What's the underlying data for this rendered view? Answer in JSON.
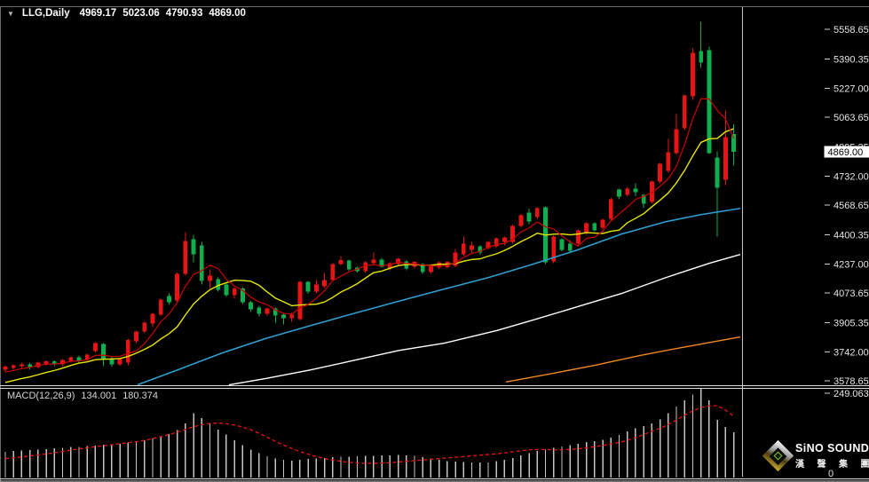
{
  "window": {
    "symbol_period": "LLG,Daily",
    "open": "4969.17",
    "high": "5023.06",
    "low": "4790.93",
    "close": "4869.00"
  },
  "colors": {
    "background": "#000000",
    "bull_candle": "#e81414",
    "bear_candle": "#0fae4e",
    "ma_fast_red": "#cc0000",
    "ma_yellow": "#e6e600",
    "ma_blue": "#2f9fd0",
    "ma_white": "#ffffff",
    "ma_orange": "#ef8820",
    "axis_text": "#e4e4e4",
    "tick": "#cfcfcf",
    "separator": "#dedede",
    "frame": "#6a6a6a",
    "histogram": "#c4c4c4",
    "signal_line": "#ee1111",
    "price_marker_bg": "#ffffff",
    "price_marker_text": "#000000"
  },
  "price_axis": {
    "labels": [
      {
        "text": "5558.65",
        "value": 5558.65
      },
      {
        "text": "5390.35",
        "value": 5390.35
      },
      {
        "text": "5227.00",
        "value": 5227.0
      },
      {
        "text": "5063.65",
        "value": 5063.65
      },
      {
        "text": "4895.35",
        "value": 4895.35
      },
      {
        "text": "4732.00",
        "value": 4732.0
      },
      {
        "text": "4568.65",
        "value": 4568.65
      },
      {
        "text": "4400.35",
        "value": 4400.35
      },
      {
        "text": "4237.00",
        "value": 4237.0
      },
      {
        "text": "4073.65",
        "value": 4073.65
      },
      {
        "text": "3905.35",
        "value": 3905.35
      },
      {
        "text": "3742.00",
        "value": 3742.0
      },
      {
        "text": "3578.65",
        "value": 3578.65
      }
    ],
    "current_price_label": "4869.00",
    "current_price": 4869.0
  },
  "macd_panel": {
    "indicator_label": "MACD(12,26,9)",
    "macd_value": "134.001",
    "signal_value": "180.374",
    "axis_top_label": "249.063",
    "axis_bottom_label": "0"
  },
  "logo": {
    "brand": "SiNO SOUND",
    "chinese": "漢 聲 集 團"
  },
  "chart_data": {
    "type": "candlestick",
    "title": "LLG,Daily",
    "legend_position": "none",
    "grid": false,
    "price_axis_range": [
      3543,
      5673
    ],
    "candles": [
      [
        3640,
        3667,
        3628,
        3658
      ],
      [
        3650,
        3672,
        3641,
        3665
      ],
      [
        3660,
        3680,
        3652,
        3672
      ],
      [
        3672,
        3678,
        3640,
        3655
      ],
      [
        3655,
        3686,
        3648,
        3680
      ],
      [
        3672,
        3694,
        3664,
        3688
      ],
      [
        3688,
        3694,
        3660,
        3670
      ],
      [
        3670,
        3700,
        3662,
        3695
      ],
      [
        3690,
        3716,
        3682,
        3710
      ],
      [
        3712,
        3720,
        3682,
        3690
      ],
      [
        3695,
        3730,
        3688,
        3725
      ],
      [
        3745,
        3795,
        3738,
        3790
      ],
      [
        3785,
        3790,
        3660,
        3700
      ],
      [
        3700,
        3712,
        3658,
        3670
      ],
      [
        3672,
        3706,
        3664,
        3700
      ],
      [
        3680,
        3815,
        3665,
        3808
      ],
      [
        3800,
        3862,
        3792,
        3855
      ],
      [
        3855,
        3912,
        3848,
        3905
      ],
      [
        3900,
        3962,
        3880,
        3955
      ],
      [
        3950,
        4042,
        3944,
        4035
      ],
      [
        4055,
        4070,
        4008,
        4020
      ],
      [
        4030,
        4188,
        4022,
        4180
      ],
      [
        4180,
        4415,
        4170,
        4365
      ],
      [
        4375,
        4400,
        4245,
        4290
      ],
      [
        4340,
        4360,
        4120,
        4140
      ],
      [
        4140,
        4205,
        4102,
        4172
      ],
      [
        4150,
        4160,
        4080,
        4090
      ],
      [
        4120,
        4128,
        4050,
        4060
      ],
      [
        4060,
        4105,
        4040,
        4098
      ],
      [
        4098,
        4105,
        4010,
        4020
      ],
      [
        4020,
        4028,
        3968,
        3980
      ],
      [
        3990,
        4000,
        3940,
        3955
      ],
      [
        3955,
        3992,
        3944,
        3985
      ],
      [
        3985,
        3992,
        3905,
        3945
      ],
      [
        3950,
        3958,
        3895,
        3930
      ],
      [
        3930,
        3960,
        3912,
        3952
      ],
      [
        3925,
        4142,
        3918,
        4135
      ],
      [
        4135,
        4142,
        4068,
        4080
      ],
      [
        4080,
        4145,
        4072,
        4120
      ],
      [
        4110,
        4185,
        4100,
        4145
      ],
      [
        4145,
        4242,
        4138,
        4235
      ],
      [
        4235,
        4280,
        4228,
        4258
      ],
      [
        4255,
        4262,
        4198,
        4205
      ],
      [
        4215,
        4222,
        4188,
        4195
      ],
      [
        4195,
        4252,
        4188,
        4245
      ],
      [
        4240,
        4300,
        4232,
        4262
      ],
      [
        4262,
        4270,
        4215,
        4222
      ],
      [
        4210,
        4245,
        4202,
        4240
      ],
      [
        4235,
        4272,
        4228,
        4265
      ],
      [
        4250,
        4258,
        4202,
        4210
      ],
      [
        4220,
        4254,
        4212,
        4248
      ],
      [
        4235,
        4242,
        4182,
        4190
      ],
      [
        4190,
        4230,
        4182,
        4224
      ],
      [
        4215,
        4250,
        4208,
        4245
      ],
      [
        4218,
        4254,
        4210,
        4248
      ],
      [
        4225,
        4322,
        4218,
        4300
      ],
      [
        4290,
        4390,
        4282,
        4350
      ],
      [
        4315,
        4362,
        4295,
        4340
      ],
      [
        4335,
        4342,
        4288,
        4300
      ],
      [
        4325,
        4366,
        4318,
        4360
      ],
      [
        4335,
        4386,
        4328,
        4380
      ],
      [
        4360,
        4392,
        4340,
        4385
      ],
      [
        4360,
        4458,
        4352,
        4450
      ],
      [
        4450,
        4518,
        4442,
        4510
      ],
      [
        4525,
        4548,
        4462,
        4475
      ],
      [
        4500,
        4556,
        4492,
        4550
      ],
      [
        4555,
        4562,
        4235,
        4245
      ],
      [
        4250,
        4396,
        4242,
        4390
      ],
      [
        4375,
        4382,
        4308,
        4315
      ],
      [
        4350,
        4372,
        4295,
        4310
      ],
      [
        4350,
        4432,
        4342,
        4425
      ],
      [
        4410,
        4472,
        4402,
        4465
      ],
      [
        4465,
        4472,
        4418,
        4425
      ],
      [
        4440,
        4492,
        4432,
        4485
      ],
      [
        4490,
        4608,
        4482,
        4600
      ],
      [
        4655,
        4662,
        4600,
        4615
      ],
      [
        4625,
        4668,
        4618,
        4660
      ],
      [
        4660,
        4690,
        4618,
        4640
      ],
      [
        4625,
        4632,
        4550,
        4575
      ],
      [
        4585,
        4706,
        4578,
        4700
      ],
      [
        4700,
        4806,
        4692,
        4800
      ],
      [
        4760,
        4940,
        4752,
        4865
      ],
      [
        4860,
        5080,
        4852,
        4995
      ],
      [
        5000,
        5192,
        4992,
        5185
      ],
      [
        5180,
        5450,
        5160,
        5425
      ],
      [
        5435,
        5600,
        5340,
        5370
      ],
      [
        5440,
        5460,
        4855,
        4860
      ],
      [
        4835,
        4870,
        4390,
        4665
      ],
      [
        4710,
        5100,
        4680,
        4950
      ],
      [
        4969.17,
        5023.06,
        4790.93,
        4869.0
      ]
    ],
    "ma_overlays": {
      "red_sma_period": 5,
      "yellow_sma_period": 10,
      "blue_points": [
        [
          155,
          3556
        ],
        [
          200,
          3640
        ],
        [
          250,
          3735
        ],
        [
          300,
          3818
        ],
        [
          350,
          3890
        ],
        [
          400,
          3960
        ],
        [
          450,
          4028
        ],
        [
          500,
          4095
        ],
        [
          550,
          4160
        ],
        [
          600,
          4235
        ],
        [
          650,
          4315
        ],
        [
          700,
          4405
        ],
        [
          750,
          4475
        ],
        [
          790,
          4515
        ],
        [
          834,
          4550
        ]
      ],
      "white_points": [
        [
          258,
          3556
        ],
        [
          300,
          3592
        ],
        [
          350,
          3640
        ],
        [
          400,
          3695
        ],
        [
          450,
          3750
        ],
        [
          500,
          3790
        ],
        [
          560,
          3862
        ],
        [
          600,
          3920
        ],
        [
          650,
          3995
        ],
        [
          700,
          4070
        ],
        [
          750,
          4160
        ],
        [
          800,
          4242
        ],
        [
          834,
          4290
        ]
      ],
      "orange_points": [
        [
          570,
          3572
        ],
        [
          620,
          3618
        ],
        [
          670,
          3666
        ],
        [
          720,
          3720
        ],
        [
          770,
          3768
        ],
        [
          834,
          3826
        ]
      ]
    },
    "macd": {
      "axis_max": 249.063,
      "axis_min": 0,
      "histogram": [
        76,
        78,
        80,
        81,
        83,
        84,
        86,
        88,
        90,
        91,
        93,
        95,
        97,
        98,
        100,
        103,
        106,
        110,
        115,
        121,
        128,
        140,
        160,
        190,
        175,
        158,
        142,
        127,
        110,
        96,
        83,
        72,
        63,
        56,
        52,
        50,
        52,
        55,
        57,
        58,
        60,
        62,
        62,
        63,
        64,
        64,
        65,
        66,
        67,
        66,
        64,
        60,
        56,
        52,
        49,
        47,
        46,
        45,
        44,
        45,
        48,
        52,
        58,
        66,
        72,
        78,
        82,
        88,
        92,
        96,
        100,
        105,
        108,
        112,
        118,
        126,
        136,
        146,
        152,
        160,
        172,
        190,
        210,
        228,
        245,
        262,
        228,
        170,
        150,
        134
      ],
      "signal": [
        56,
        58,
        61,
        64,
        67,
        70,
        73,
        77,
        81,
        85,
        88,
        91,
        94,
        97,
        100,
        103,
        106,
        110,
        115,
        121,
        127,
        134,
        142,
        150,
        156,
        160,
        161,
        159,
        155,
        149,
        141,
        131,
        119,
        107,
        96,
        86,
        77,
        69,
        62,
        56,
        52,
        48,
        45,
        43,
        42,
        42,
        43,
        44,
        46,
        48,
        50,
        52,
        54,
        56,
        58,
        60,
        62,
        64,
        66,
        68,
        70,
        73,
        76,
        79,
        82,
        83,
        83,
        82,
        82,
        83,
        85,
        88,
        91,
        95,
        99,
        104,
        110,
        118,
        127,
        137,
        145,
        157,
        170,
        184,
        197,
        207,
        212,
        212,
        200,
        180.374
      ]
    }
  }
}
